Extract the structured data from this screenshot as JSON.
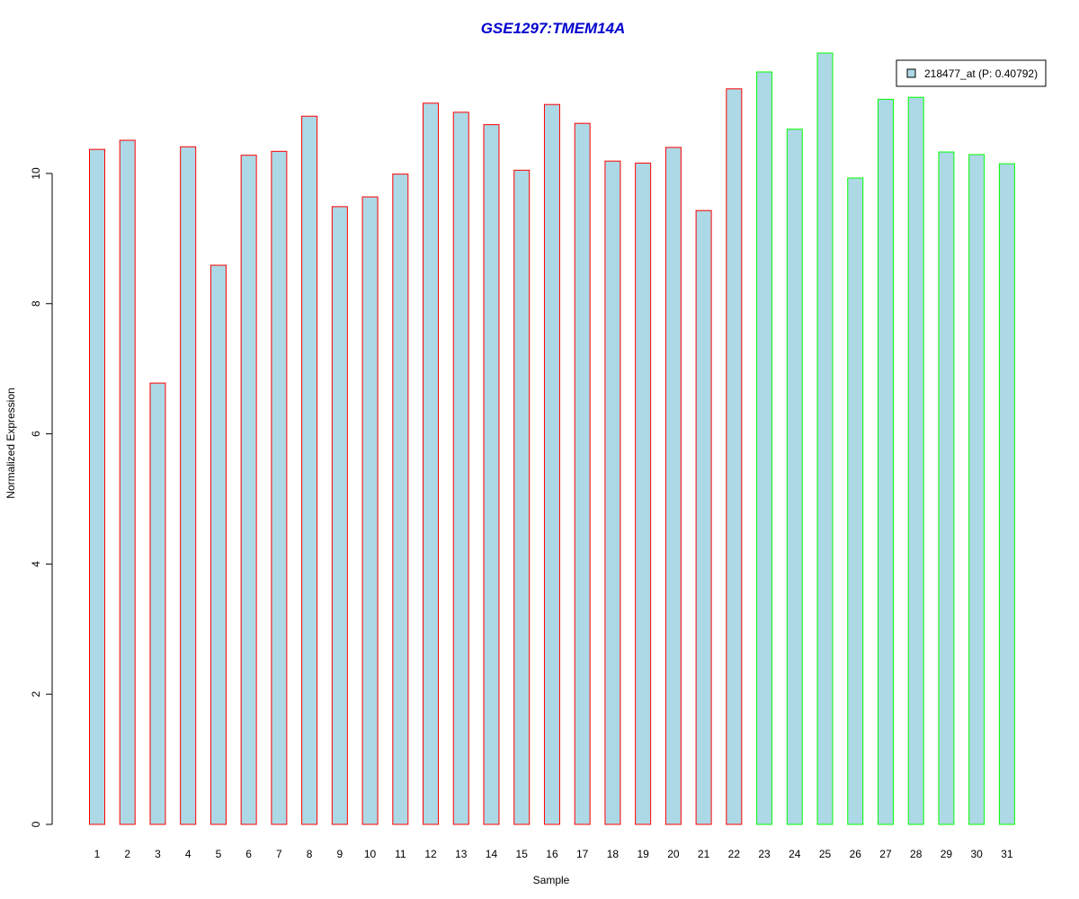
{
  "chart_data": {
    "type": "bar",
    "title": "GSE1297:TMEM14A",
    "xlabel": "Sample",
    "ylabel": "Normalized Expression",
    "ylim": [
      0,
      11.85
    ],
    "yticks": [
      0,
      2,
      4,
      6,
      8,
      10
    ],
    "grid": false,
    "legend_position": "top-right",
    "legend": {
      "label": "218477_at (P: 0.40792)",
      "fill": "#add8e6",
      "border": "#000000"
    },
    "bar_fill": "#add8e6",
    "group_colors": {
      "group_1": "#ff0000",
      "group_2": "#00ff00"
    },
    "categories": [
      "1",
      "2",
      "3",
      "4",
      "5",
      "6",
      "7",
      "8",
      "9",
      "10",
      "11",
      "12",
      "13",
      "14",
      "15",
      "16",
      "17",
      "18",
      "19",
      "20",
      "21",
      "22",
      "23",
      "24",
      "25",
      "26",
      "27",
      "28",
      "29",
      "30",
      "31"
    ],
    "values": [
      10.37,
      10.51,
      6.78,
      10.41,
      8.59,
      10.28,
      10.34,
      10.88,
      9.49,
      9.64,
      9.99,
      11.08,
      10.94,
      10.75,
      10.05,
      11.06,
      10.77,
      10.19,
      10.16,
      10.4,
      9.43,
      11.3,
      11.56,
      10.68,
      11.85,
      9.93,
      11.14,
      11.17,
      10.33,
      10.29,
      10.15
    ],
    "groups": [
      "group_1",
      "group_1",
      "group_1",
      "group_1",
      "group_1",
      "group_1",
      "group_1",
      "group_1",
      "group_1",
      "group_1",
      "group_1",
      "group_1",
      "group_1",
      "group_1",
      "group_1",
      "group_1",
      "group_1",
      "group_1",
      "group_1",
      "group_1",
      "group_1",
      "group_1",
      "group_2",
      "group_2",
      "group_2",
      "group_2",
      "group_2",
      "group_2",
      "group_2",
      "group_2",
      "group_2"
    ]
  },
  "title_color": "#0000cd"
}
